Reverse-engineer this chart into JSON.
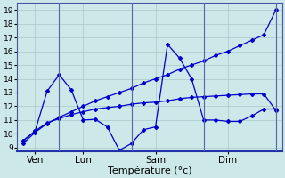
{
  "background_color": "#cce8e8",
  "grid_color": "#a8c8c8",
  "line_color": "#0000cc",
  "marker_color": "#0000cc",
  "xlabel": "Température (°c)",
  "xlabel_fontsize": 8,
  "yticks": [
    9,
    10,
    11,
    12,
    13,
    14,
    15,
    16,
    17,
    18,
    19
  ],
  "ylim": [
    8.7,
    19.5
  ],
  "day_labels": [
    "Ven",
    "Lun",
    "Sam",
    "Dim"
  ],
  "day_positions": [
    1,
    5,
    11,
    17
  ],
  "vline_positions": [
    3,
    9,
    15,
    21
  ],
  "series1_x": [
    0,
    1,
    2,
    3,
    4,
    5,
    6,
    7,
    8,
    9,
    10,
    11,
    12,
    13,
    14,
    15,
    16,
    17,
    18,
    19,
    20,
    21
  ],
  "series1_y": [
    9.3,
    10.1,
    10.75,
    11.2,
    11.6,
    12.0,
    12.4,
    12.7,
    13.0,
    13.3,
    13.7,
    14.0,
    14.3,
    14.7,
    15.0,
    15.3,
    15.7,
    16.0,
    16.4,
    16.8,
    17.2,
    19.0
  ],
  "series2_x": [
    0,
    1,
    2,
    3,
    4,
    5,
    6,
    7,
    8,
    9,
    10,
    11,
    12,
    13,
    14,
    15,
    16,
    17,
    18,
    19,
    20,
    21
  ],
  "series2_y": [
    9.5,
    10.2,
    10.8,
    11.1,
    11.4,
    11.6,
    11.8,
    11.9,
    12.0,
    12.15,
    12.25,
    12.3,
    12.4,
    12.55,
    12.65,
    12.7,
    12.75,
    12.8,
    12.85,
    12.9,
    12.9,
    11.7
  ],
  "series3_x": [
    0,
    1,
    2,
    3,
    4,
    5,
    6,
    7,
    8,
    9,
    10,
    11,
    12,
    13,
    14,
    15,
    16,
    17,
    18,
    19,
    20,
    21
  ],
  "series3_y": [
    9.5,
    10.2,
    13.1,
    14.3,
    13.2,
    11.0,
    11.05,
    10.5,
    8.8,
    9.3,
    10.3,
    10.5,
    16.5,
    15.5,
    14.0,
    11.0,
    11.0,
    10.9,
    10.9,
    11.3,
    11.8,
    11.8
  ],
  "xlim": [
    -0.5,
    21.5
  ],
  "figsize": [
    3.2,
    2.0
  ],
  "dpi": 100
}
